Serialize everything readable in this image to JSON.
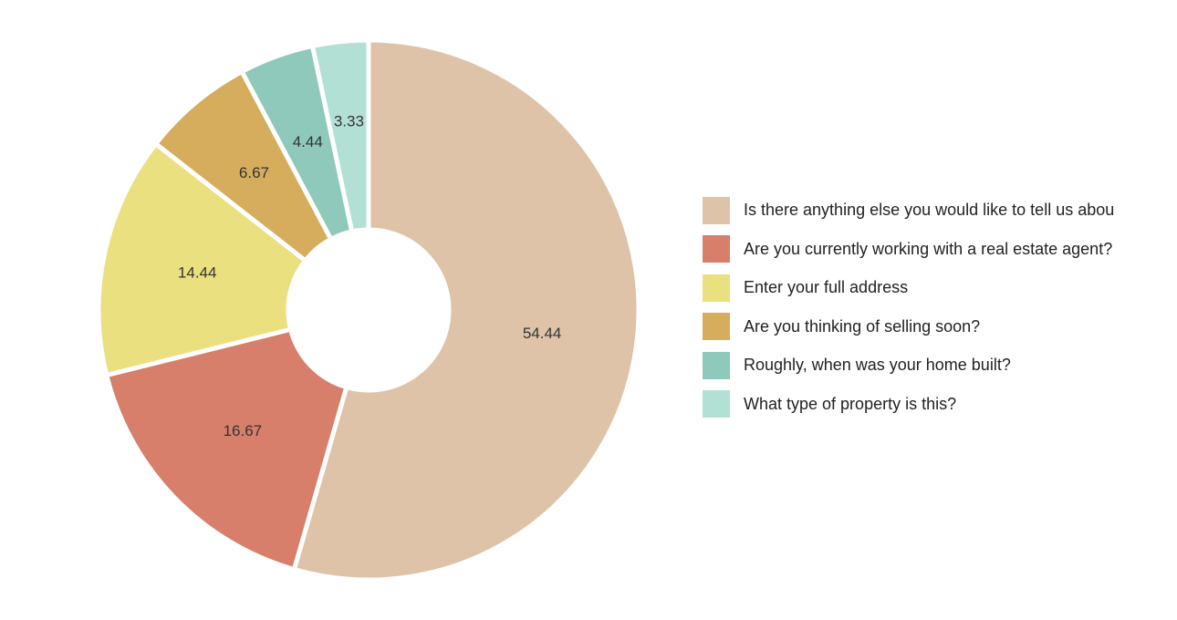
{
  "chart_data": {
    "type": "pie",
    "variant": "donut",
    "categories": [
      "Is there anything else you would like to tell us abou",
      "Are you currently working with a real estate agent?",
      "Enter your full address",
      "Are you thinking of selling soon?",
      "Roughly, when was your home built?",
      "What type of property is this?"
    ],
    "values": [
      54.44,
      16.67,
      14.44,
      6.67,
      4.44,
      3.33
    ],
    "data_labels": [
      "54.44",
      "16.67",
      "14.44",
      "6.67",
      "4.44",
      "3.33"
    ],
    "colors": [
      "#dec3a8",
      "#d77f6b",
      "#ebe07f",
      "#d6ad5d",
      "#8fc9bb",
      "#b3e0d5"
    ],
    "legend_position": "right",
    "title": "",
    "xlabel": "",
    "ylabel": ""
  }
}
